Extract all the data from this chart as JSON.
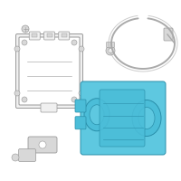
{
  "bg_color": "#ffffff",
  "border_color": "#e0e0e0",
  "module_color": "#f0f0f0",
  "module_stroke": "#999999",
  "compressor_fill": "#5ec8e0",
  "compressor_stroke": "#2a8faa",
  "line_color": "#aaaaaa",
  "fitting_color": "#d8d8d8",
  "white": "#ffffff"
}
